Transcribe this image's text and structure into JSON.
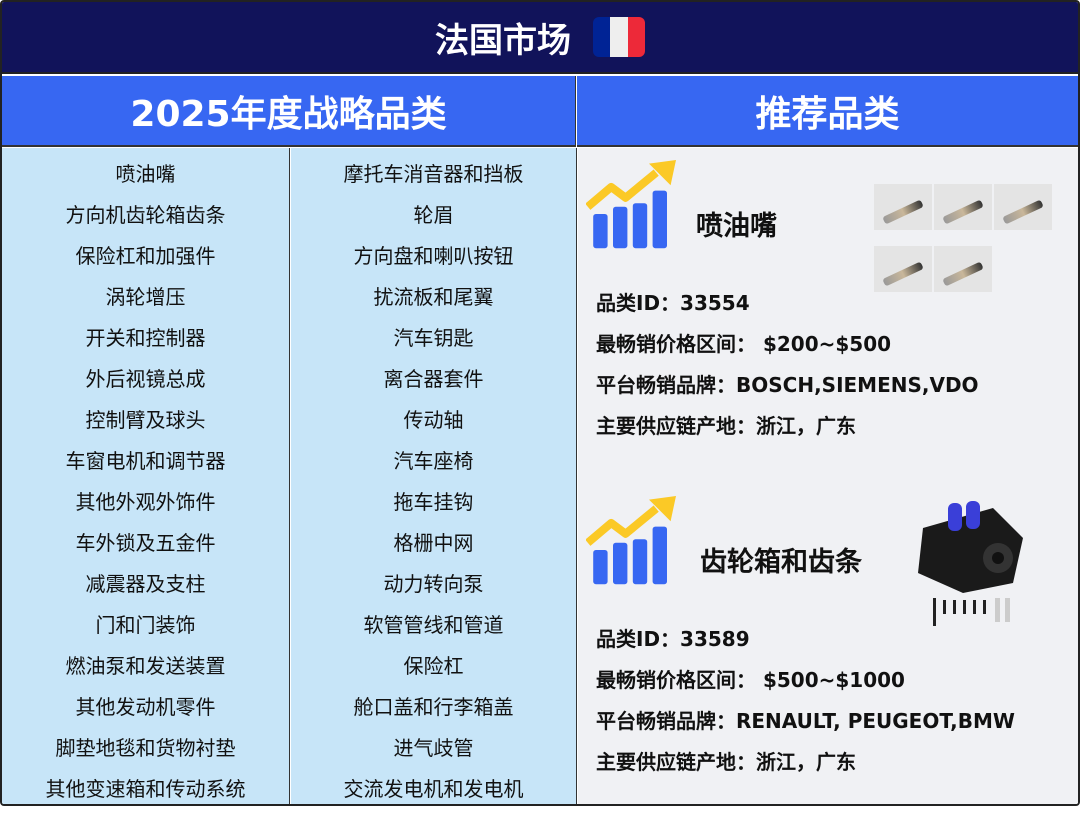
{
  "title": "法国市场",
  "flag_colors": [
    "#002395",
    "#ffffff",
    "#ed2939"
  ],
  "headers": {
    "strategic": "2025年度战略品类",
    "recommended": "推荐品类"
  },
  "strategic_col1": [
    "喷油嘴",
    "方向机齿轮箱齿条",
    "保险杠和加强件",
    "涡轮增压",
    "开关和控制器",
    "外后视镜总成",
    "控制臂及球头",
    "车窗电机和调节器",
    "其他外观外饰件",
    "车外锁及五金件",
    "减震器及支柱",
    "门和门装饰",
    "燃油泵和发送装置",
    "其他发动机零件",
    "脚垫地毯和货物衬垫",
    "其他变速箱和传动系统"
  ],
  "strategic_col2": [
    "摩托车消音器和挡板",
    "轮眉",
    "方向盘和喇叭按钮",
    "扰流板和尾翼",
    "汽车钥匙",
    "离合器套件",
    "传动轴",
    "汽车座椅",
    "拖车挂钩",
    "格栅中网",
    "动力转向泵",
    "软管管线和管道",
    "保险杠",
    "舱口盖和行李箱盖",
    "进气歧管",
    "交流发电机和发电机"
  ],
  "recommended": [
    {
      "name": "喷油嘴",
      "id": "品类ID：33554",
      "price": "最畅销价格区间： $200~$500",
      "brands": "平台畅销品牌：BOSCH,SIEMENS,VDO",
      "supply": "主要供应链产地：浙江，广东",
      "icon": "trend-chart-icon"
    },
    {
      "name": "齿轮箱和齿条",
      "id": "品类ID：33589",
      "price": "最畅销价格区间： $500~$1000",
      "brands": "平台畅销品牌：RENAULT, PEUGEOT,BMW",
      "supply": "主要供应链产地：浙江，广东",
      "icon": "trend-chart-icon"
    }
  ],
  "colors": {
    "title_bg": "#11135a",
    "header_bg": "#3767f2",
    "list_bg": "#c7e5f8",
    "panel_bg": "#f0f1f4",
    "arrow": "#fbc926"
  }
}
